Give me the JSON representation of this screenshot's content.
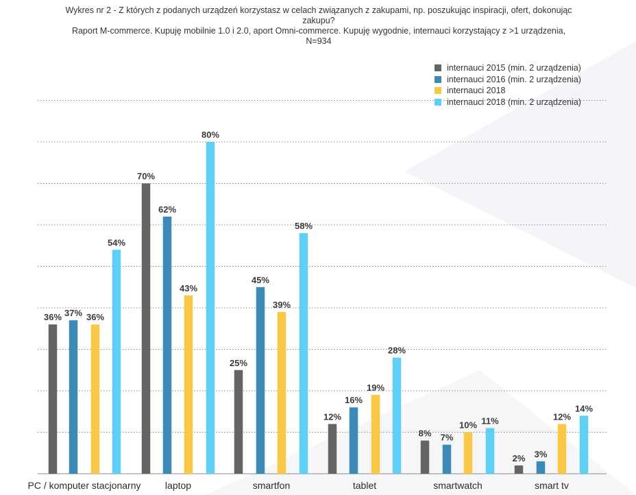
{
  "chart_data": {
    "type": "bar",
    "title_lines": [
      "Wykres nr 2 - Z których z podanych urządzeń korzystasz w celach związanych z zakupami, np. poszukując inspiracji, ofert, dokonując",
      "zakupu?",
      "Raport M-commerce. Kupuję mobilnie 1.0 i 2.0, aport Omni-commerce. Kupuję wygodnie, internauci korzystający z >1 urządzenia,",
      "N=934"
    ],
    "categories": [
      "PC / komputer stacjonarny",
      "laptop",
      "smartfon",
      "tablet",
      "smartwatch",
      "smart tv"
    ],
    "series": [
      {
        "name": "internauci 2015 (min. 2 urządzenia)",
        "color": "#646567",
        "values": [
          36,
          70,
          25,
          12,
          8,
          2
        ],
        "labels": [
          "36%",
          "70%",
          "25%",
          "12%",
          "8%",
          "2%"
        ]
      },
      {
        "name": "internauci 2016 (min. 2 urządzenia)",
        "color": "#3a8ab5",
        "values": [
          37,
          62,
          45,
          16,
          7,
          3
        ],
        "labels": [
          "37%",
          "62%",
          "45%",
          "16%",
          "7%",
          "3%"
        ]
      },
      {
        "name": "internauci 2018",
        "color": "#f9c945",
        "values": [
          36,
          43,
          39,
          19,
          10,
          12
        ],
        "labels": [
          "36%",
          "43%",
          "39%",
          "19%",
          "10%",
          "12%"
        ]
      },
      {
        "name": "internauci 2018 (min. 2 urządzenia)",
        "color": "#5fd0f3",
        "values": [
          54,
          80,
          58,
          28,
          11,
          14
        ],
        "labels": [
          "54%",
          "80%",
          "58%",
          "28%",
          "11%",
          "14%"
        ]
      }
    ],
    "ylim": [
      0,
      100
    ],
    "grid": true,
    "legend_position": "top-right",
    "xlabel": "",
    "ylabel": ""
  }
}
